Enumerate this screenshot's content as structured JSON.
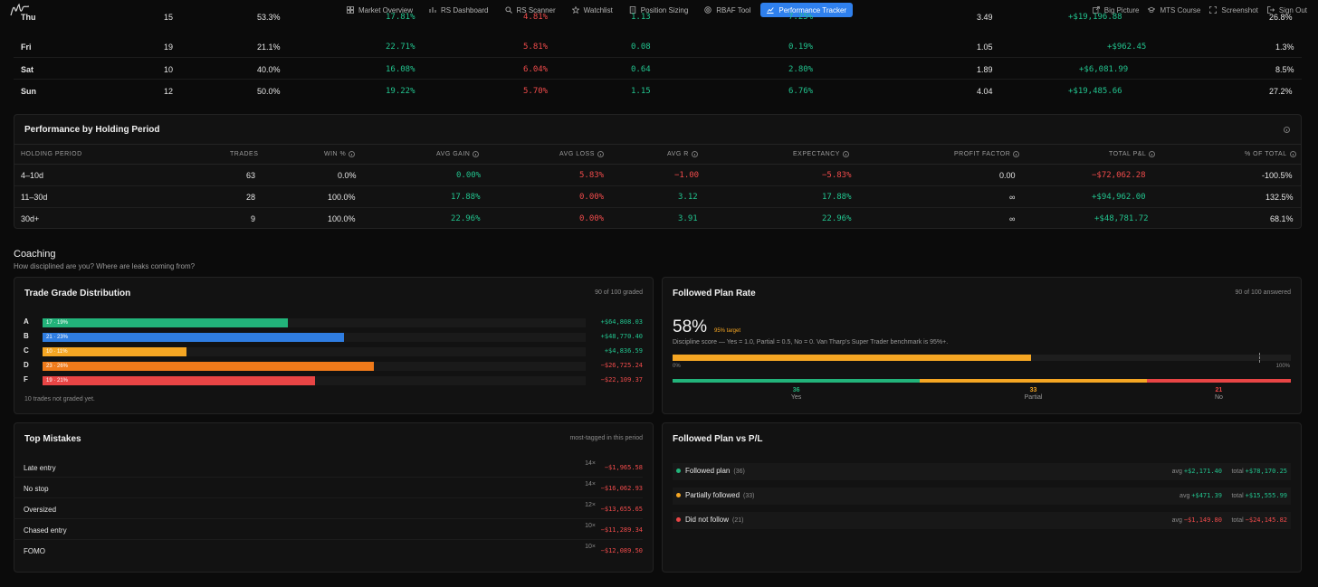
{
  "nav": {
    "items": [
      {
        "label": "Market Overview",
        "icon": "grid-icon"
      },
      {
        "label": "RS Dashboard",
        "icon": "bar-chart-icon"
      },
      {
        "label": "RS Scanner",
        "icon": "search-icon"
      },
      {
        "label": "Watchlist",
        "icon": "star-icon"
      },
      {
        "label": "Position Sizing",
        "icon": "document-icon"
      },
      {
        "label": "RBAF Tool",
        "icon": "target-icon"
      },
      {
        "label": "Performance Tracker",
        "icon": "trend-icon"
      }
    ],
    "right": [
      {
        "label": "Big Picture",
        "icon": "external-link-icon"
      },
      {
        "label": "MTS Course",
        "icon": "graduation-cap-icon"
      },
      {
        "label": "Screenshot",
        "icon": "screenshot-icon"
      },
      {
        "label": "Sign Out",
        "icon": "sign-out-icon"
      }
    ]
  },
  "day_rows": [
    {
      "day": "Thu",
      "trades": "15",
      "win": "53.3%",
      "gain": "17.81%",
      "loss": "4.81%",
      "r": "1.13",
      "exp": "7.25%",
      "pf": "3.49",
      "pnl": "+$19,196.88",
      "pct": "26.8%"
    },
    {
      "day": "Fri",
      "trades": "19",
      "win": "21.1%",
      "gain": "22.71%",
      "loss": "5.81%",
      "r": "0.08",
      "exp": "0.19%",
      "pf": "1.05",
      "pnl": "+$962.45",
      "pct": "1.3%"
    },
    {
      "day": "Sat",
      "trades": "10",
      "win": "40.0%",
      "gain": "16.08%",
      "loss": "6.04%",
      "r": "0.64",
      "exp": "2.80%",
      "pf": "1.89",
      "pnl": "+$6,081.99",
      "pct": "8.5%"
    },
    {
      "day": "Sun",
      "trades": "12",
      "win": "50.0%",
      "gain": "19.22%",
      "loss": "5.70%",
      "r": "1.15",
      "exp": "6.76%",
      "pf": "4.04",
      "pnl": "+$19,485.66",
      "pct": "27.2%"
    }
  ],
  "holding": {
    "title": "Performance by Holding Period",
    "headers": [
      "HOLDING PERIOD",
      "TRADES",
      "WIN %",
      "AVG GAIN",
      "AVG LOSS",
      "AVG R",
      "EXPECTANCY",
      "PROFIT FACTOR",
      "TOTAL P&L",
      "% OF TOTAL"
    ],
    "rows": [
      {
        "period": "4–10d",
        "trades": "63",
        "win": "0.0%",
        "gain": "0.00%",
        "loss": "5.83%",
        "r": "−1.00",
        "exp": "−5.83%",
        "pf": "0.00",
        "pnl": "−$72,062.28",
        "pct": "-100.5%"
      },
      {
        "period": "11–30d",
        "trades": "28",
        "win": "100.0%",
        "gain": "17.88%",
        "loss": "0.00%",
        "r": "3.12",
        "exp": "17.88%",
        "pf": "∞",
        "pnl": "+$94,962.00",
        "pct": "132.5%"
      },
      {
        "period": "30d+",
        "trades": "9",
        "win": "100.0%",
        "gain": "22.96%",
        "loss": "0.00%",
        "r": "3.91",
        "exp": "22.96%",
        "pf": "∞",
        "pnl": "+$48,781.72",
        "pct": "68.1%"
      }
    ]
  },
  "coaching": {
    "title": "Coaching",
    "subtitle": "How disciplined are you? Where are leaks coming from?"
  },
  "grades": {
    "title": "Trade Grade Distribution",
    "sub": "90 of 100 graded",
    "note": "10 trades not graded yet.",
    "rows": [
      {
        "grade": "A",
        "label": "17 · 19%",
        "fraction": 0.19,
        "color": "#22b37a",
        "value": "+$64,808.03",
        "tone": "green"
      },
      {
        "grade": "B",
        "label": "21 · 23%",
        "fraction": 0.233,
        "color": "#2f7de1",
        "value": "+$48,770.40",
        "tone": "green"
      },
      {
        "grade": "C",
        "label": "10 · 11%",
        "fraction": 0.111,
        "color": "#f5a623",
        "value": "+$4,836.59",
        "tone": "green"
      },
      {
        "grade": "D",
        "label": "23 · 26%",
        "fraction": 0.256,
        "color": "#f07a1a",
        "value": "−$26,725.24",
        "tone": "red"
      },
      {
        "grade": "F",
        "label": "19 · 21%",
        "fraction": 0.211,
        "color": "#e84545",
        "value": "−$22,109.37",
        "tone": "red"
      }
    ]
  },
  "plan_rate": {
    "title": "Followed Plan Rate",
    "sub": "90 of 100 answered",
    "value": "58%",
    "target": "95% target",
    "desc": "Discipline score — Yes = 1.0, Partial = 0.5, No = 0. Van Tharp's Super Trader benchmark is 95%+.",
    "progress": 0.58,
    "scale_min": "0%",
    "scale_max": "100%",
    "split": [
      {
        "label": "Yes",
        "count": "36",
        "fraction": 0.4,
        "color": "#22b37a"
      },
      {
        "label": "Partial",
        "count": "33",
        "fraction": 0.367,
        "color": "#f5a623"
      },
      {
        "label": "No",
        "count": "21",
        "fraction": 0.233,
        "color": "#e84545"
      }
    ]
  },
  "mistakes": {
    "title": "Top Mistakes",
    "sub": "most-tagged in this period",
    "rows": [
      {
        "label": "Late entry",
        "count": "14×",
        "value": "−$1,965.58"
      },
      {
        "label": "No stop",
        "count": "14×",
        "value": "−$16,062.93"
      },
      {
        "label": "Oversized",
        "count": "12×",
        "value": "−$13,655.65"
      },
      {
        "label": "Chased entry",
        "count": "10×",
        "value": "−$11,289.34"
      },
      {
        "label": "FOMO",
        "count": "10×",
        "value": "−$12,089.50"
      }
    ]
  },
  "plan_pl": {
    "title": "Followed Plan vs P/L",
    "rows": [
      {
        "label": "Followed plan",
        "count": "(36)",
        "avg_label": "avg",
        "avg": "+$2,171.40",
        "total_label": "total",
        "total": "+$78,170.25",
        "color": "#22b37a",
        "tone": "green"
      },
      {
        "label": "Partially followed",
        "count": "(33)",
        "avg_label": "avg",
        "avg": "+$471.39",
        "total_label": "total",
        "total": "+$15,555.99",
        "color": "#f5a623",
        "tone": "green"
      },
      {
        "label": "Did not follow",
        "count": "(21)",
        "avg_label": "avg",
        "avg": "−$1,149.80",
        "total_label": "total",
        "total": "−$24,145.82",
        "color": "#e84545",
        "tone": "red"
      }
    ]
  }
}
